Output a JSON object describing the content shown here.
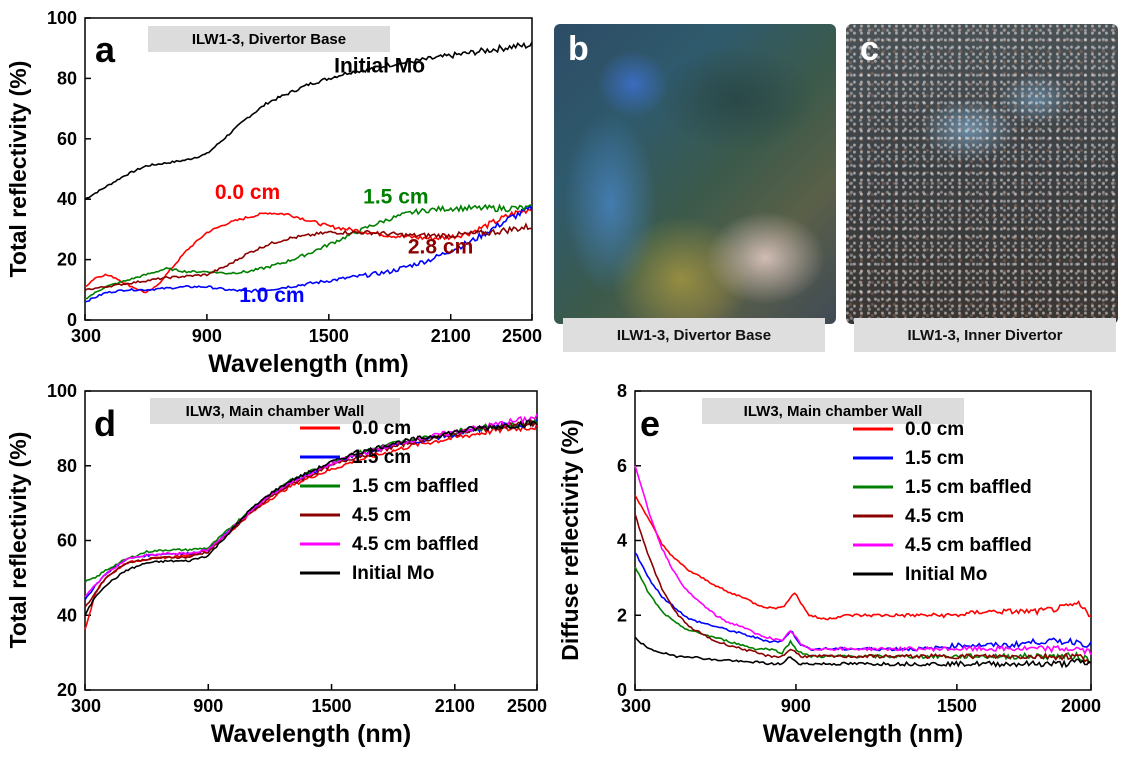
{
  "chart_data": [
    {
      "panel": "a",
      "type": "line",
      "tag": "ILW1-3, Divertor Base",
      "xlabel": "Wavelength (nm)",
      "ylabel": "Total reflectivity (%)",
      "xlim": [
        300,
        2500
      ],
      "ylim": [
        0,
        100
      ],
      "xticks": [
        300,
        900,
        1500,
        2100,
        2500
      ],
      "yticks": [
        0,
        20,
        40,
        60,
        80,
        100
      ],
      "series": [
        {
          "name": "Initial Mo",
          "color": "#000000",
          "x": [
            300,
            400,
            500,
            600,
            700,
            800,
            900,
            1000,
            1100,
            1200,
            1300,
            1400,
            1500,
            1600,
            1700,
            1800,
            1900,
            2000,
            2100,
            2200,
            2300,
            2400,
            2500
          ],
          "y": [
            40,
            44,
            48,
            51,
            52,
            53,
            55,
            61,
            67,
            72,
            75,
            78,
            80,
            82,
            83,
            84.5,
            85.5,
            86.5,
            87.5,
            88.5,
            89.5,
            90.5,
            91
          ]
        },
        {
          "name": "0.0 cm",
          "color": "#ff0000",
          "x": [
            300,
            350,
            400,
            450,
            500,
            600,
            650,
            700,
            800,
            900,
            1000,
            1100,
            1200,
            1300,
            1400,
            1500,
            1600,
            1700,
            1800,
            1900,
            2000,
            2100,
            2200,
            2300,
            2400,
            2500
          ],
          "y": [
            11,
            14,
            15,
            14,
            12,
            9,
            11,
            15,
            23,
            29,
            32,
            34,
            35.5,
            35,
            33,
            31,
            30,
            29,
            28,
            27.5,
            27,
            27.5,
            29,
            32,
            35,
            37
          ]
        },
        {
          "name": "1.0 cm",
          "color": "#0000ff",
          "x": [
            300,
            400,
            500,
            600,
            700,
            800,
            900,
            1000,
            1100,
            1200,
            1300,
            1400,
            1500,
            1600,
            1700,
            1800,
            1900,
            2000,
            2100,
            2200,
            2300,
            2400,
            2500
          ],
          "y": [
            6,
            9,
            10,
            10,
            10.5,
            11,
            11,
            10,
            9.5,
            10,
            11,
            12,
            13,
            14,
            15,
            16,
            18,
            20,
            23,
            26,
            30,
            34,
            37
          ]
        },
        {
          "name": "1.5 cm",
          "color": "#008000",
          "x": [
            300,
            400,
            500,
            600,
            700,
            800,
            900,
            1000,
            1100,
            1200,
            1300,
            1400,
            1500,
            1600,
            1700,
            1800,
            1900,
            2000,
            2100,
            2200,
            2300,
            2400,
            2500
          ],
          "y": [
            7,
            11,
            13,
            15,
            17,
            16,
            16,
            15.5,
            16,
            17.5,
            19.5,
            22,
            25,
            28,
            31,
            33.5,
            35.5,
            36.5,
            37,
            37,
            37,
            37,
            37
          ]
        },
        {
          "name": "2.8 cm",
          "color": "#8b0000",
          "x": [
            300,
            400,
            500,
            600,
            700,
            800,
            900,
            1000,
            1100,
            1200,
            1300,
            1400,
            1500,
            1600,
            1700,
            1800,
            1900,
            2000,
            2100,
            2200,
            2300,
            2400,
            2500
          ],
          "y": [
            10,
            11,
            12,
            13,
            14,
            14.5,
            15,
            18,
            22,
            25,
            27,
            28,
            29,
            29,
            29,
            28.5,
            28,
            28,
            28,
            28.5,
            29,
            30,
            31
          ]
        }
      ],
      "annotations": [
        {
          "text": "Initial Mo",
          "x": 1750,
          "y": 82,
          "color": "#000000"
        },
        {
          "text": "0.0 cm",
          "x": 1100,
          "y": 40,
          "color": "#ff0000"
        },
        {
          "text": "1.5 cm",
          "x": 1830,
          "y": 38.5,
          "color": "#008000"
        },
        {
          "text": "2.8 cm",
          "x": 2050,
          "y": 22,
          "color": "#8b0000"
        },
        {
          "text": "1.0 cm",
          "x": 1220,
          "y": 6,
          "color": "#0000ff"
        }
      ]
    },
    {
      "panel": "d",
      "type": "line",
      "tag": "ILW3, Main chamber Wall",
      "xlabel": "Wavelength (nm)",
      "ylabel": "Total reflectivity (%)",
      "xlim": [
        300,
        2500
      ],
      "ylim": [
        20,
        100
      ],
      "xticks": [
        300,
        900,
        1500,
        2100,
        2500
      ],
      "yticks": [
        20,
        40,
        60,
        80,
        100
      ],
      "legend": "center-right",
      "series": [
        {
          "name": "0.0 cm",
          "color": "#ff0000",
          "x": [
            300,
            350,
            400,
            500,
            600,
            700,
            800,
            900,
            1000,
            1100,
            1200,
            1300,
            1400,
            1500,
            1600,
            1700,
            1800,
            1900,
            2000,
            2100,
            2200,
            2300,
            2400,
            2500
          ],
          "y": [
            36,
            46,
            50,
            54,
            55,
            55.5,
            56,
            57.5,
            62,
            67,
            71,
            74.5,
            77,
            79,
            81,
            82.5,
            84,
            85.5,
            86.5,
            87.5,
            88.5,
            89.5,
            90,
            90.5
          ]
        },
        {
          "name": "1.5 cm",
          "color": "#0000ff",
          "x": [
            300,
            350,
            400,
            500,
            600,
            700,
            800,
            900,
            1000,
            1100,
            1200,
            1300,
            1400,
            1500,
            1600,
            1700,
            1800,
            1900,
            2000,
            2100,
            2200,
            2300,
            2400,
            2500
          ],
          "y": [
            44,
            48,
            51,
            55,
            56,
            56.5,
            56.5,
            57.5,
            62.5,
            67.5,
            72,
            75.5,
            78,
            80.5,
            82.5,
            84,
            85.5,
            86.5,
            87.5,
            88.5,
            89.5,
            90.5,
            91,
            91.5
          ]
        },
        {
          "name": "1.5 cm baffled",
          "color": "#008000",
          "x": [
            300,
            350,
            400,
            500,
            600,
            700,
            800,
            900,
            1000,
            1100,
            1200,
            1300,
            1400,
            1500,
            1600,
            1700,
            1800,
            1900,
            2000,
            2100,
            2200,
            2300,
            2400,
            2500
          ],
          "y": [
            49,
            50,
            52,
            55,
            57,
            57.5,
            57.5,
            58,
            63,
            68,
            72.5,
            76,
            78.5,
            81,
            83,
            84.5,
            86,
            87,
            88,
            89,
            90,
            90.5,
            91,
            91.5
          ]
        },
        {
          "name": "4.5 cm",
          "color": "#8b0000",
          "x": [
            300,
            350,
            400,
            500,
            600,
            700,
            800,
            900,
            1000,
            1100,
            1200,
            1300,
            1400,
            1500,
            1600,
            1700,
            1800,
            1900,
            2000,
            2100,
            2200,
            2300,
            2400,
            2500
          ],
          "y": [
            42,
            46,
            50,
            54,
            55,
            55.5,
            55.5,
            57,
            62,
            67,
            71.5,
            75,
            77.5,
            80,
            82,
            83.5,
            85,
            86.5,
            87.5,
            88.5,
            89.5,
            90.5,
            91,
            91.5
          ]
        },
        {
          "name": "4.5 cm baffled",
          "color": "#ff00ff",
          "x": [
            300,
            350,
            400,
            500,
            600,
            700,
            800,
            900,
            1000,
            1100,
            1200,
            1300,
            1400,
            1500,
            1600,
            1700,
            1800,
            1900,
            2000,
            2100,
            2200,
            2300,
            2400,
            2500
          ],
          "y": [
            45,
            48,
            51,
            55,
            56,
            56.5,
            56.5,
            57.5,
            62.5,
            67.5,
            72,
            75.5,
            78,
            80.5,
            82.5,
            84,
            85.5,
            87,
            88,
            89,
            90,
            91,
            92,
            93
          ]
        },
        {
          "name": "Initial Mo",
          "color": "#000000",
          "x": [
            300,
            350,
            400,
            500,
            600,
            700,
            800,
            900,
            1000,
            1100,
            1200,
            1300,
            1400,
            1500,
            1600,
            1700,
            1800,
            1900,
            2000,
            2100,
            2200,
            2300,
            2400,
            2500
          ],
          "y": [
            40,
            45,
            48,
            52,
            54,
            54.5,
            54.5,
            56,
            62,
            68,
            72.5,
            76,
            78.5,
            81,
            83,
            84.5,
            86,
            87,
            88,
            89,
            90,
            90.5,
            91,
            91.5
          ]
        }
      ]
    },
    {
      "panel": "e",
      "type": "line",
      "tag": "ILW3, Main chamber Wall",
      "xlabel": "Wavelength (nm)",
      "ylabel": "Diffuse reflectivity (%)",
      "xlim": [
        300,
        2000
      ],
      "ylim": [
        0,
        8
      ],
      "xticks": [
        300,
        900,
        1500,
        2000
      ],
      "yticks": [
        0,
        2,
        4,
        6,
        8
      ],
      "legend": "top-right",
      "series": [
        {
          "name": "0.0 cm",
          "color": "#ff0000",
          "x": [
            300,
            350,
            400,
            450,
            500,
            550,
            600,
            650,
            700,
            750,
            800,
            850,
            880,
            900,
            920,
            950,
            1000,
            1100,
            1200,
            1300,
            1400,
            1500,
            1600,
            1700,
            1800,
            1900,
            1950,
            2000
          ],
          "y": [
            5.2,
            4.6,
            3.9,
            3.5,
            3.2,
            3.0,
            2.8,
            2.6,
            2.5,
            2.3,
            2.2,
            2.2,
            2.5,
            2.6,
            2.3,
            2.0,
            1.9,
            2.0,
            2.0,
            2.0,
            2.0,
            2.0,
            2.1,
            2.1,
            2.1,
            2.2,
            2.3,
            2.0
          ]
        },
        {
          "name": "1.5 cm",
          "color": "#0000ff",
          "x": [
            300,
            350,
            400,
            450,
            500,
            550,
            600,
            650,
            700,
            750,
            800,
            850,
            880,
            900,
            920,
            950,
            1000,
            1100,
            1200,
            1300,
            1400,
            1500,
            1600,
            1700,
            1800,
            1900,
            1950,
            2000
          ],
          "y": [
            3.7,
            3.0,
            2.5,
            2.2,
            1.9,
            1.8,
            1.7,
            1.6,
            1.5,
            1.4,
            1.3,
            1.3,
            1.6,
            1.4,
            1.2,
            1.1,
            1.1,
            1.1,
            1.1,
            1.1,
            1.1,
            1.2,
            1.2,
            1.2,
            1.3,
            1.3,
            1.3,
            1.2
          ]
        },
        {
          "name": "1.5 cm baffled",
          "color": "#008000",
          "x": [
            300,
            350,
            400,
            450,
            500,
            550,
            600,
            650,
            700,
            750,
            800,
            850,
            880,
            900,
            920,
            950,
            1000,
            1100,
            1200,
            1300,
            1400,
            1500,
            1600,
            1700,
            1800,
            1900,
            1950,
            2000
          ],
          "y": [
            3.3,
            2.6,
            2.1,
            1.8,
            1.6,
            1.5,
            1.4,
            1.3,
            1.2,
            1.1,
            1.1,
            1.0,
            1.3,
            1.1,
            1.0,
            0.9,
            0.9,
            0.9,
            0.9,
            0.9,
            0.9,
            0.9,
            0.9,
            0.9,
            0.9,
            0.9,
            0.9,
            0.8
          ]
        },
        {
          "name": "4.5 cm",
          "color": "#8b0000",
          "x": [
            300,
            350,
            400,
            450,
            500,
            550,
            600,
            650,
            700,
            750,
            800,
            850,
            880,
            900,
            920,
            950,
            1000,
            1100,
            1200,
            1300,
            1400,
            1500,
            1600,
            1700,
            1800,
            1900,
            1950,
            2000
          ],
          "y": [
            4.7,
            3.6,
            2.7,
            2.1,
            1.7,
            1.5,
            1.3,
            1.2,
            1.1,
            1.0,
            0.9,
            0.9,
            1.1,
            1.0,
            0.9,
            0.9,
            0.9,
            0.9,
            0.9,
            0.9,
            0.9,
            0.9,
            0.9,
            0.9,
            0.9,
            0.9,
            0.9,
            0.8
          ]
        },
        {
          "name": "4.5 cm baffled",
          "color": "#ff00ff",
          "x": [
            300,
            350,
            400,
            450,
            500,
            550,
            600,
            650,
            700,
            750,
            800,
            850,
            880,
            900,
            920,
            950,
            1000,
            1100,
            1200,
            1300,
            1400,
            1500,
            1600,
            1700,
            1800,
            1900,
            1950,
            2000
          ],
          "y": [
            6.0,
            4.8,
            3.8,
            3.1,
            2.6,
            2.3,
            2.0,
            1.8,
            1.7,
            1.5,
            1.4,
            1.3,
            1.6,
            1.4,
            1.2,
            1.1,
            1.1,
            1.1,
            1.1,
            1.1,
            1.1,
            1.1,
            1.1,
            1.1,
            1.1,
            1.1,
            1.1,
            1.0
          ]
        },
        {
          "name": "Initial Mo",
          "color": "#000000",
          "x": [
            300,
            350,
            400,
            450,
            500,
            550,
            600,
            650,
            700,
            750,
            800,
            850,
            880,
            900,
            920,
            950,
            1000,
            1100,
            1200,
            1300,
            1400,
            1500,
            1600,
            1700,
            1800,
            1900,
            1950,
            2000
          ],
          "y": [
            1.4,
            1.1,
            1.0,
            0.9,
            0.9,
            0.85,
            0.8,
            0.8,
            0.75,
            0.75,
            0.7,
            0.7,
            0.9,
            0.75,
            0.7,
            0.7,
            0.7,
            0.7,
            0.7,
            0.7,
            0.7,
            0.7,
            0.7,
            0.7,
            0.7,
            0.7,
            0.75,
            0.7
          ]
        }
      ]
    }
  ],
  "photos": [
    {
      "letter": "b",
      "caption": "ILW1-3, Divertor Base"
    },
    {
      "letter": "c",
      "caption": "ILW1-3, Inner Divertor"
    }
  ],
  "panel_letters": {
    "a": "a",
    "d": "d",
    "e": "e"
  }
}
